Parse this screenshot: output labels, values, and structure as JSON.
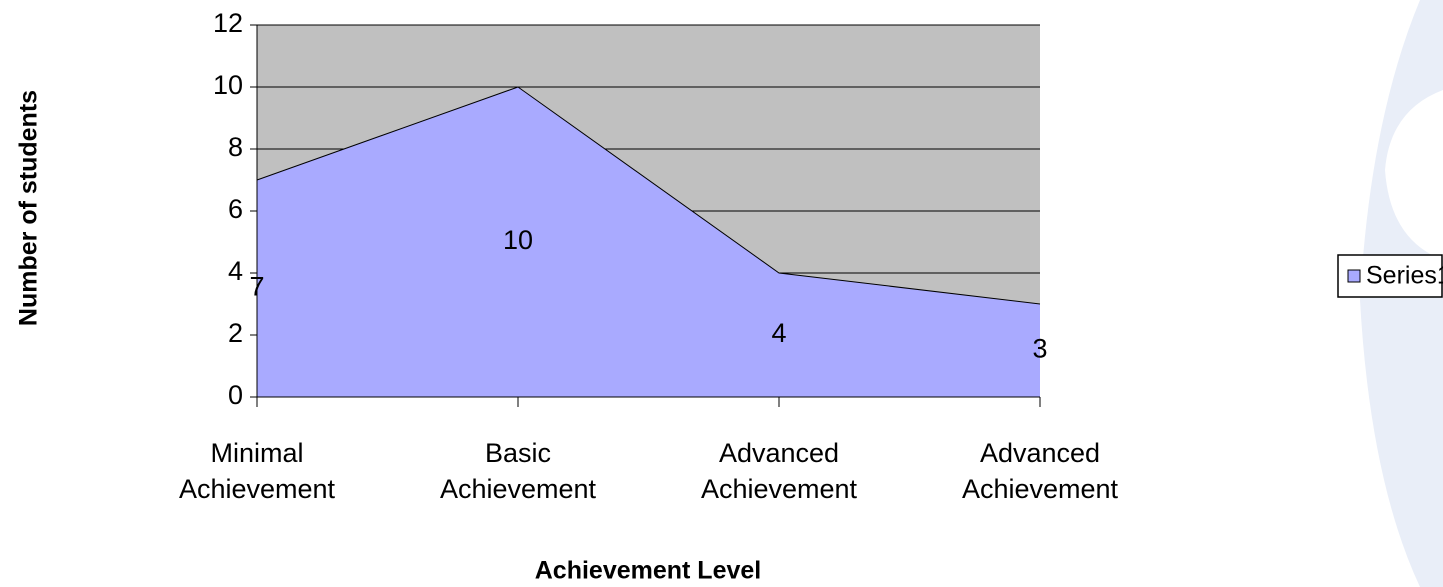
{
  "chart_data": {
    "type": "area",
    "x_label": "Achievement Level",
    "y_label": "Number of students",
    "categories": [
      "Minimal Achievement",
      "Basic Achievement",
      "Advanced Achievement",
      "Advanced Achievement"
    ],
    "series": [
      {
        "name": "Series1",
        "color": "#a9aaff",
        "values": [
          7,
          10,
          4,
          3
        ]
      }
    ],
    "ylim": [
      0,
      12
    ],
    "yticks": [
      0,
      2,
      4,
      6,
      8,
      10,
      12
    ],
    "grid": true,
    "plot_background": "#c0c0c0",
    "legend": "right"
  }
}
